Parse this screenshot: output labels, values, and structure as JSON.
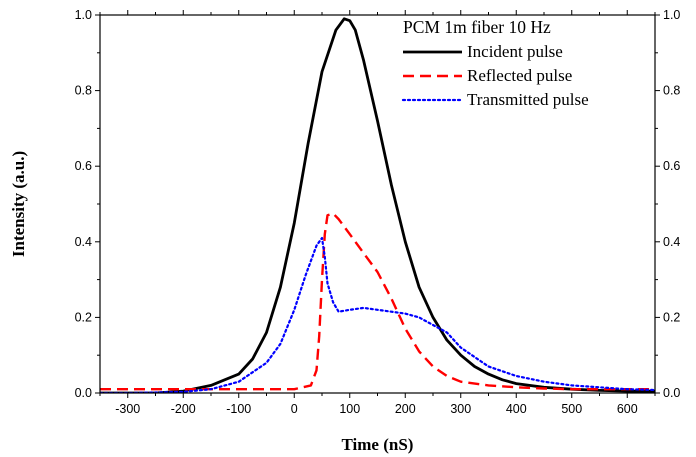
{
  "chart_data": {
    "type": "line",
    "title": "",
    "xlabel": "Time (nS)",
    "ylabel": "Intensity (a.u.)",
    "xlim": [
      -350,
      650
    ],
    "ylim": [
      0.0,
      1.0
    ],
    "x_ticks": [
      -300,
      -200,
      -100,
      0,
      100,
      200,
      300,
      400,
      500,
      600
    ],
    "y_ticks": [
      0.0,
      0.2,
      0.4,
      0.6,
      0.8,
      1.0
    ],
    "y_tick_labels_left": [
      "0.0",
      "0.2",
      "0.4",
      "0.6",
      "0.8",
      "1.0"
    ],
    "y_tick_labels_right": [
      "0.0",
      "0.2",
      "0.4",
      "0.6",
      "0.8",
      "1.0"
    ],
    "grid": false,
    "legend": {
      "position": "top-right",
      "title": "PCM 1m fiber 10 Hz"
    },
    "series": [
      {
        "name": "Incident pulse",
        "color": "#000000",
        "style": "solid",
        "x": [
          -350,
          -300,
          -250,
          -200,
          -150,
          -100,
          -75,
          -50,
          -25,
          0,
          25,
          50,
          75,
          90,
          100,
          110,
          125,
          150,
          175,
          200,
          225,
          250,
          275,
          300,
          325,
          350,
          375,
          400,
          450,
          500,
          550,
          600,
          650
        ],
        "y": [
          0.0,
          0.0,
          0.0,
          0.005,
          0.02,
          0.05,
          0.09,
          0.16,
          0.28,
          0.45,
          0.66,
          0.85,
          0.96,
          0.99,
          0.985,
          0.96,
          0.88,
          0.72,
          0.55,
          0.4,
          0.28,
          0.2,
          0.14,
          0.1,
          0.07,
          0.05,
          0.035,
          0.025,
          0.015,
          0.01,
          0.007,
          0.005,
          0.005
        ]
      },
      {
        "name": "Reflected pulse",
        "color": "#ff0000",
        "style": "dashed",
        "x": [
          -350,
          -200,
          -100,
          0,
          30,
          40,
          45,
          50,
          55,
          60,
          70,
          80,
          100,
          125,
          150,
          175,
          200,
          225,
          250,
          275,
          300,
          350,
          400,
          450,
          500,
          550,
          600,
          650
        ],
        "y": [
          0.01,
          0.01,
          0.01,
          0.01,
          0.02,
          0.06,
          0.15,
          0.3,
          0.42,
          0.47,
          0.475,
          0.46,
          0.42,
          0.37,
          0.32,
          0.25,
          0.17,
          0.11,
          0.07,
          0.045,
          0.03,
          0.02,
          0.015,
          0.012,
          0.01,
          0.01,
          0.01,
          0.01
        ]
      },
      {
        "name": "Transmitted pulse",
        "color": "#0000ff",
        "style": "dotted",
        "x": [
          -350,
          -300,
          -200,
          -150,
          -100,
          -50,
          -25,
          0,
          20,
          40,
          50,
          55,
          60,
          70,
          80,
          100,
          125,
          150,
          175,
          200,
          225,
          250,
          275,
          300,
          350,
          400,
          450,
          500,
          550,
          600,
          650
        ],
        "y": [
          0.0,
          0.0,
          0.003,
          0.01,
          0.03,
          0.08,
          0.13,
          0.22,
          0.31,
          0.39,
          0.41,
          0.36,
          0.29,
          0.24,
          0.215,
          0.22,
          0.225,
          0.22,
          0.215,
          0.21,
          0.2,
          0.18,
          0.16,
          0.12,
          0.07,
          0.045,
          0.03,
          0.02,
          0.015,
          0.01,
          0.008
        ]
      }
    ]
  }
}
